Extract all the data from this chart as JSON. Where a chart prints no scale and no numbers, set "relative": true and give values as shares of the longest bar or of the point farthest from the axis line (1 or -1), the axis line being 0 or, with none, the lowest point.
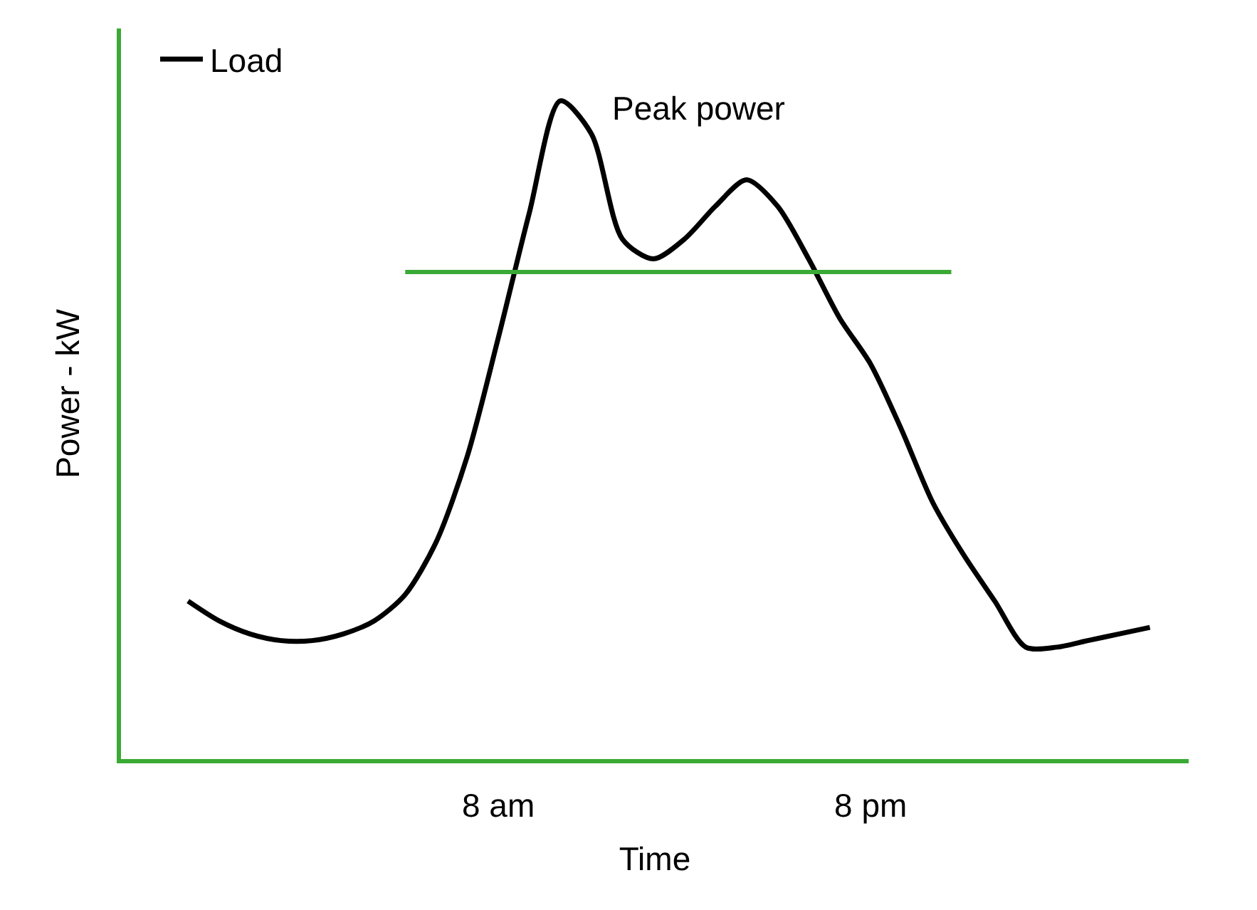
{
  "chart_data": {
    "type": "line",
    "relative": true,
    "xlabel": "Time",
    "ylabel": "Power - kW",
    "categories": [
      null,
      null,
      null,
      null,
      null,
      null,
      null,
      null,
      null,
      null,
      "8 am",
      null,
      null,
      null,
      null,
      null,
      null,
      null,
      null,
      null,
      null,
      null,
      "8 pm",
      null,
      null,
      null,
      null,
      null,
      null,
      null,
      null,
      null
    ],
    "series": [
      {
        "name": "Load",
        "color": "#000000",
        "values": [
          0.24,
          0.21,
          0.19,
          0.18,
          0.18,
          0.19,
          0.21,
          0.25,
          0.33,
          0.46,
          0.64,
          0.83,
          1.0,
          0.95,
          0.79,
          0.76,
          0.79,
          0.84,
          0.88,
          0.84,
          0.76,
          0.67,
          0.6,
          0.5,
          0.39,
          0.31,
          0.24,
          0.17,
          0.17,
          0.18,
          0.19,
          0.2
        ]
      }
    ],
    "ref_lines": [
      {
        "axis": "y",
        "value": 0.74,
        "color": "#3aaa35"
      }
    ],
    "annotations": [
      "Peak power"
    ],
    "legend": "top left",
    "marker": "none",
    "line_style": "solid"
  }
}
